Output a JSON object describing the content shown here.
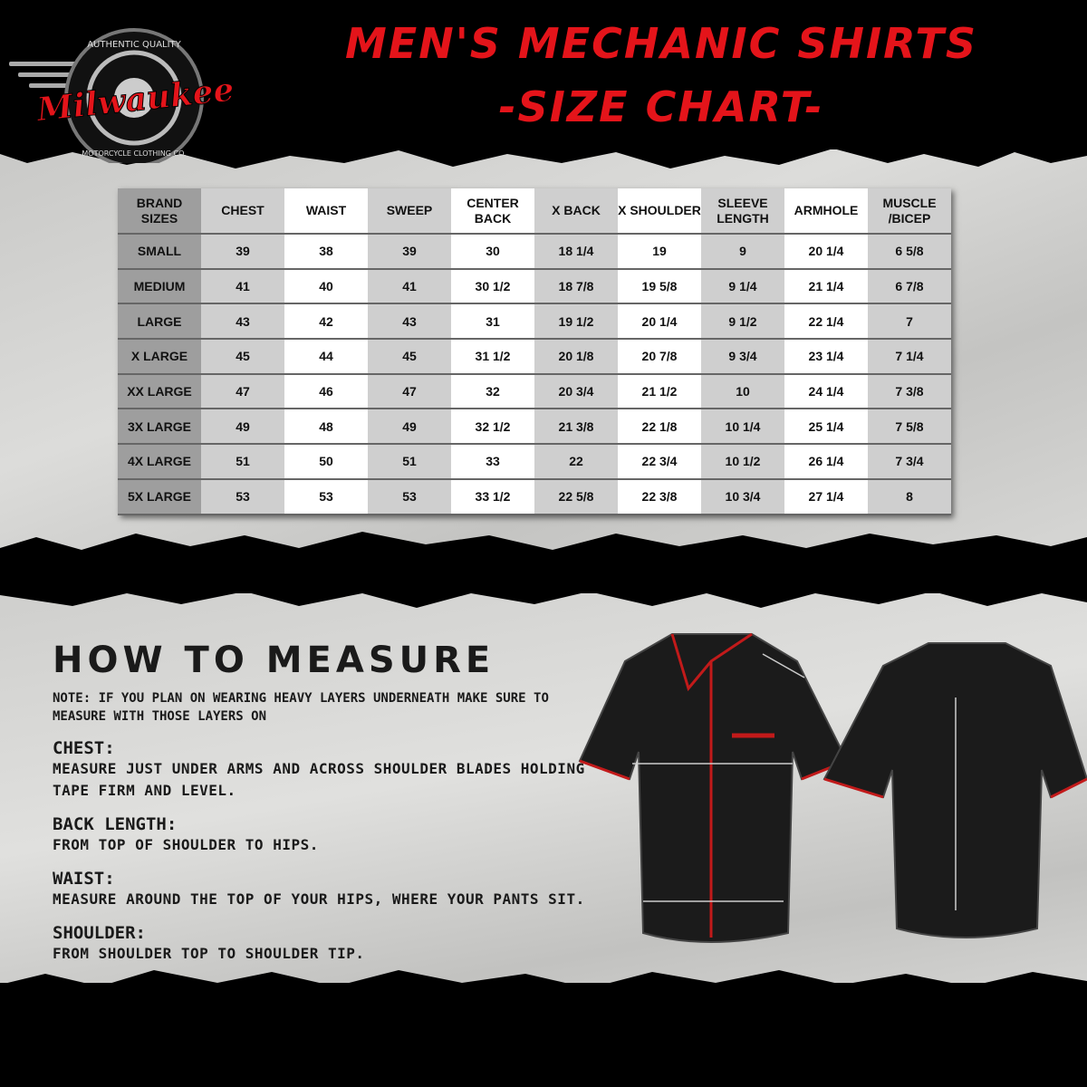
{
  "header": {
    "title_line1": "MEN'S MECHANIC SHIRTS",
    "title_line2": "-SIZE CHART-"
  },
  "logo": {
    "brand": "Milwaukee",
    "top_text": "AUTHENTIC QUALITY",
    "bottom_text": "MOTORCYCLE CLOTHING CO."
  },
  "colors": {
    "accent": "#e4141a",
    "background": "#000000",
    "panel": "#d4d4d2"
  },
  "size_chart": {
    "headers": [
      "BRAND SIZES",
      "CHEST",
      "WAIST",
      "SWEEP",
      "CENTER BACK",
      "X BACK",
      "X SHOULDER",
      "SLEEVE LENGTH",
      "ARMHOLE",
      "MUSCLE /BICEP"
    ],
    "rows": [
      [
        "SMALL",
        "39",
        "38",
        "39",
        "30",
        "18 1/4",
        "19",
        "9",
        "20 1/4",
        "6 5/8"
      ],
      [
        "MEDIUM",
        "41",
        "40",
        "41",
        "30 1/2",
        "18 7/8",
        "19 5/8",
        "9 1/4",
        "21 1/4",
        "6 7/8"
      ],
      [
        "LARGE",
        "43",
        "42",
        "43",
        "31",
        "19 1/2",
        "20 1/4",
        "9 1/2",
        "22 1/4",
        "7"
      ],
      [
        "X LARGE",
        "45",
        "44",
        "45",
        "31 1/2",
        "20 1/8",
        "20 7/8",
        "9 3/4",
        "23 1/4",
        "7 1/4"
      ],
      [
        "XX LARGE",
        "47",
        "46",
        "47",
        "32",
        "20 3/4",
        "21 1/2",
        "10",
        "24 1/4",
        "7 3/8"
      ],
      [
        "3X LARGE",
        "49",
        "48",
        "49",
        "32 1/2",
        "21 3/8",
        "22 1/8",
        "10 1/4",
        "25 1/4",
        "7 5/8"
      ],
      [
        "4X LARGE",
        "51",
        "50",
        "51",
        "33",
        "22",
        "22 3/4",
        "10 1/2",
        "26 1/4",
        "7 3/4"
      ],
      [
        "5X LARGE",
        "53",
        "53",
        "53",
        "33 1/2",
        "22 5/8",
        "22 3/8",
        "10 3/4",
        "27 1/4",
        "8"
      ]
    ]
  },
  "how_to_measure": {
    "title": "HOW TO MEASURE",
    "note": "NOTE: IF YOU PLAN ON WEARING HEAVY LAYERS UNDERNEATH MAKE SURE TO MEASURE WITH THOSE LAYERS ON",
    "sections": [
      {
        "label": "CHEST:",
        "text": "MEASURE JUST UNDER ARMS AND ACROSS SHOULDER BLADES HOLDING TAPE FIRM AND LEVEL."
      },
      {
        "label": "BACK LENGTH:",
        "text": "FROM TOP OF SHOULDER TO HIPS."
      },
      {
        "label": "WAIST:",
        "text": "MEASURE AROUND THE TOP OF YOUR HIPS, WHERE YOUR PANTS SIT."
      },
      {
        "label": "SHOULDER:",
        "text": "FROM SHOULDER TOP TO SHOULDER TIP."
      }
    ]
  }
}
